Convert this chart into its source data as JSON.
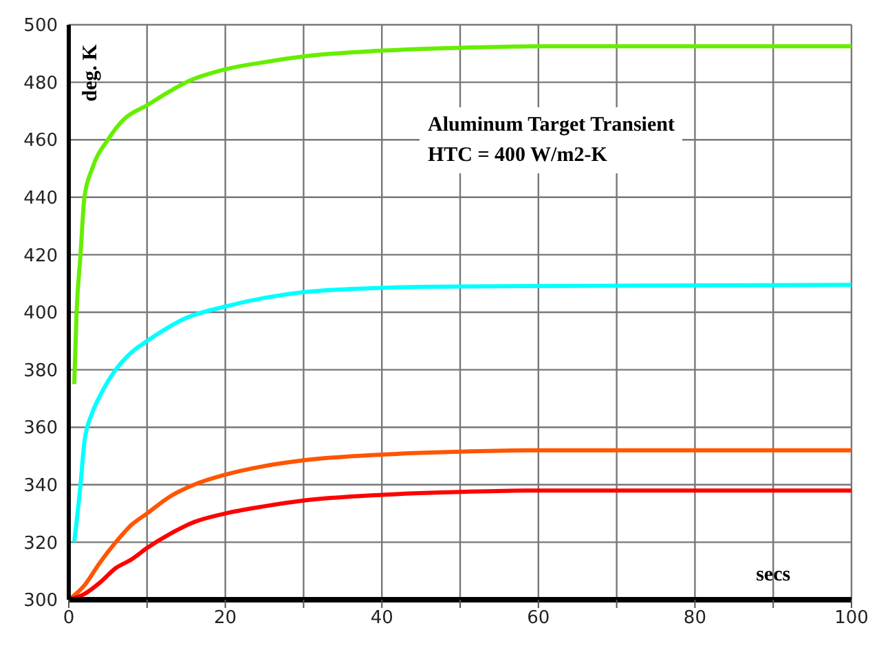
{
  "chart_data": {
    "type": "line",
    "xlabel": "secs",
    "ylabel": "deg. K",
    "annotations": [
      "Aluminum Target Transient\nHTC = 400 W/m2-K"
    ],
    "xlim": [
      0,
      100
    ],
    "xticks": [
      0,
      {
        "value": 10,
        "label": null
      },
      20,
      {
        "value": 30,
        "label": null
      },
      40,
      {
        "value": 50,
        "label": null
      },
      60,
      {
        "value": 70,
        "label": null
      },
      80,
      {
        "value": 90,
        "label": null
      },
      100
    ],
    "ylim": [
      300,
      500
    ],
    "yticks": [
      300,
      320,
      340,
      360,
      380,
      400,
      420,
      440,
      460,
      480,
      500
    ],
    "grid": true,
    "marker": "none",
    "line_style": "solid",
    "series": [
      {
        "color": "#66ee00",
        "x": [
          0.7,
          1,
          1.5,
          2,
          3,
          5,
          7,
          10,
          13,
          15,
          20,
          25,
          30,
          40,
          50,
          60,
          100
        ],
        "values": [
          375,
          400,
          420,
          440,
          450,
          460,
          467,
          472,
          477,
          480,
          484.5,
          487,
          489,
          491,
          492,
          492.5,
          492.5
        ]
      },
      {
        "color": "#00ffff",
        "x": [
          0.7,
          1.5,
          2,
          3,
          4,
          6,
          8,
          10,
          15,
          20,
          25,
          30,
          40,
          50,
          100
        ],
        "values": [
          320,
          340,
          355,
          365,
          371,
          380,
          386,
          390,
          398,
          402,
          405,
          407,
          408.5,
          409,
          409.5
        ]
      },
      {
        "color": "#ff5500",
        "x": [
          0,
          2,
          4,
          6,
          8,
          10,
          13,
          16,
          20,
          25,
          30,
          40,
          50,
          60,
          100
        ],
        "values": [
          300,
          305,
          313,
          320,
          326,
          330,
          336,
          340,
          343.5,
          346.5,
          348.5,
          350.5,
          351.5,
          352,
          352
        ]
      },
      {
        "color": "#ff0000",
        "x": [
          0,
          2,
          4,
          6,
          8,
          10,
          13,
          16,
          20,
          25,
          30,
          40,
          50,
          60,
          100
        ],
        "values": [
          300,
          302,
          306,
          311,
          314,
          318,
          323,
          327,
          330,
          332.5,
          334.5,
          336.5,
          337.5,
          338,
          338
        ]
      }
    ]
  }
}
